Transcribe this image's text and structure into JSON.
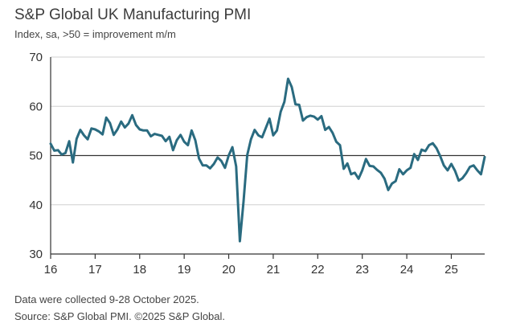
{
  "header": {
    "title": "S&P Global UK Manufacturing PMI",
    "subtitle": "Index, sa, >50 = improvement m/m"
  },
  "footer": {
    "note": "Data were collected 9-28 October 2025.",
    "source": "Source: S&P Global PMI. ©2025 S&P Global."
  },
  "colors": {
    "line": "#2a6b80",
    "axis": "#333333",
    "grid": "#d0d0d0"
  },
  "chart_data": {
    "type": "line",
    "title": "S&P Global UK Manufacturing PMI",
    "subtitle": "Index, sa, >50 = improvement m/m",
    "xlabel": "",
    "ylabel": "",
    "ylim": [
      30,
      70
    ],
    "yticks": [
      30,
      40,
      50,
      60,
      70
    ],
    "xlim": [
      16,
      25.75
    ],
    "xticks": [
      "16",
      "17",
      "18",
      "19",
      "20",
      "21",
      "22",
      "23",
      "24",
      "25"
    ],
    "grid": "horizontal",
    "reference_line": 50,
    "series": [
      {
        "name": "",
        "x": [
          16.0,
          16.083,
          16.167,
          16.25,
          16.333,
          16.417,
          16.5,
          16.583,
          16.667,
          16.75,
          16.833,
          16.917,
          17.0,
          17.083,
          17.167,
          17.25,
          17.333,
          17.417,
          17.5,
          17.583,
          17.667,
          17.75,
          17.833,
          17.917,
          18.0,
          18.083,
          18.167,
          18.25,
          18.333,
          18.417,
          18.5,
          18.583,
          18.667,
          18.75,
          18.833,
          18.917,
          19.0,
          19.083,
          19.167,
          19.25,
          19.333,
          19.417,
          19.5,
          19.583,
          19.667,
          19.75,
          19.833,
          19.917,
          20.0,
          20.083,
          20.167,
          20.25,
          20.333,
          20.417,
          20.5,
          20.583,
          20.667,
          20.75,
          20.833,
          20.917,
          21.0,
          21.083,
          21.167,
          21.25,
          21.333,
          21.417,
          21.5,
          21.583,
          21.667,
          21.75,
          21.833,
          21.917,
          22.0,
          22.083,
          22.167,
          22.25,
          22.333,
          22.417,
          22.5,
          22.583,
          22.667,
          22.75,
          22.833,
          22.917,
          23.0,
          23.083,
          23.167,
          23.25,
          23.333,
          23.417,
          23.5,
          23.583,
          23.667,
          23.75,
          23.833,
          23.917,
          24.0,
          24.083,
          24.167,
          24.25,
          24.333,
          24.417,
          24.5,
          24.583,
          24.667,
          24.75,
          24.833,
          24.917,
          25.0,
          25.083,
          25.167,
          25.25,
          25.333,
          25.417,
          25.5,
          25.583,
          25.667,
          25.75
        ],
        "values": [
          52.4,
          51.0,
          51.1,
          50.2,
          50.5,
          52.9,
          48.6,
          53.4,
          55.2,
          54.1,
          53.3,
          55.5,
          55.3,
          54.9,
          54.3,
          57.7,
          56.6,
          54.2,
          55.3,
          56.9,
          55.7,
          56.5,
          58.2,
          56.2,
          55.3,
          55.1,
          55.1,
          53.9,
          54.4,
          54.2,
          54.0,
          52.9,
          53.8,
          51.1,
          53.1,
          54.2,
          52.8,
          52.1,
          55.1,
          53.1,
          49.4,
          48.0,
          48.0,
          47.4,
          48.3,
          49.6,
          48.9,
          47.5,
          50.0,
          51.7,
          47.8,
          32.6,
          40.7,
          50.1,
          53.3,
          55.2,
          54.1,
          53.7,
          55.6,
          57.5,
          54.1,
          55.1,
          58.9,
          60.9,
          65.6,
          63.9,
          60.4,
          60.3,
          57.1,
          57.8,
          58.1,
          57.9,
          57.3,
          58.0,
          55.2,
          55.8,
          54.6,
          52.8,
          52.1,
          47.3,
          48.4,
          46.2,
          46.5,
          45.3,
          47.0,
          49.3,
          47.9,
          47.8,
          47.1,
          46.5,
          45.3,
          43.0,
          44.3,
          44.8,
          47.2,
          46.2,
          47.0,
          47.5,
          50.3,
          49.1,
          51.2,
          50.9,
          52.1,
          52.5,
          51.5,
          49.9,
          48.0,
          47.0,
          48.3,
          46.9,
          44.9,
          45.4,
          46.4,
          47.7,
          48.0,
          47.0,
          46.2,
          49.7
        ]
      }
    ]
  }
}
